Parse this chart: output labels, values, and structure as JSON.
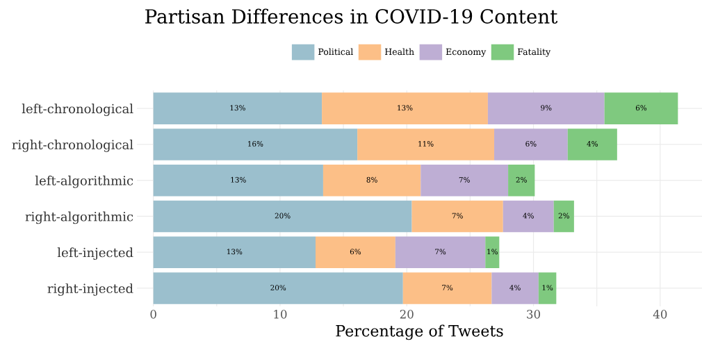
{
  "chart_data": {
    "type": "bar",
    "orientation": "horizontal",
    "stacked": true,
    "title": "Partisan Differences in COVID-19 Content",
    "xlabel": "Percentage of Tweets",
    "categories": [
      "left-chronological",
      "right-chronological",
      "left-algorithmic",
      "right-algorithmic",
      "left-injected",
      "right-injected"
    ],
    "series": [
      {
        "name": "Political",
        "color": "#9bbfcd",
        "values": [
          13.3,
          16.1,
          13.4,
          20.4,
          12.8,
          19.7
        ],
        "value_labels": [
          "13%",
          "16%",
          "13%",
          "20%",
          "13%",
          "20%"
        ]
      },
      {
        "name": "Health",
        "color": "#fcbf87",
        "values": [
          13.1,
          10.8,
          7.7,
          7.2,
          6.3,
          7.0
        ],
        "value_labels": [
          "13%",
          "11%",
          "8%",
          "7%",
          "6%",
          "7%"
        ]
      },
      {
        "name": "Economy",
        "color": "#beaed4",
        "values": [
          9.2,
          5.8,
          6.9,
          4.0,
          7.1,
          3.7
        ],
        "value_labels": [
          "9%",
          "6%",
          "7%",
          "4%",
          "7%",
          "4%"
        ]
      },
      {
        "name": "Fatality",
        "color": "#7fc97f",
        "values": [
          5.8,
          3.9,
          2.1,
          1.6,
          1.1,
          1.4
        ],
        "value_labels": [
          "6%",
          "4%",
          "2%",
          "2%",
          "1%",
          "1%"
        ]
      }
    ],
    "xlim": [
      -1.3,
      43.3
    ],
    "xticks": [
      0,
      10,
      20,
      30,
      40
    ],
    "grid": true,
    "legend": "top"
  }
}
